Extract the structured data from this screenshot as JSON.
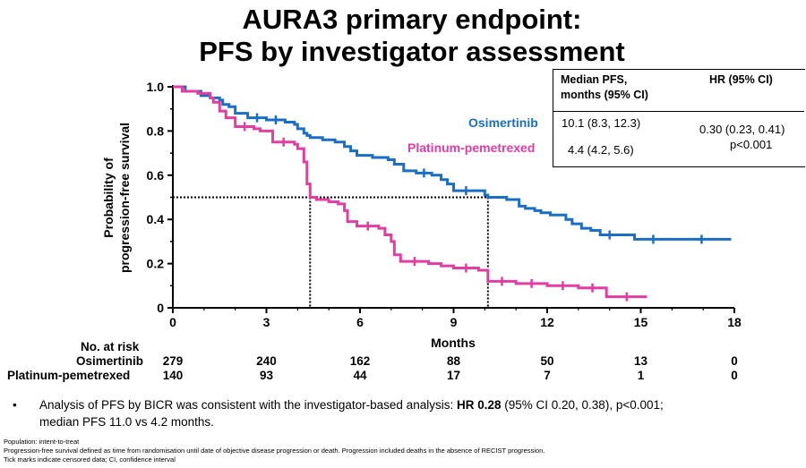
{
  "title_line1": "AURA3 primary endpoint:",
  "title_line2": "PFS by investigator assessment",
  "table": {
    "col1_header_line1": "Median PFS,",
    "col1_header_line2": "months (95% CI)",
    "col2_header": "HR (95% CI)",
    "osi_median": "10.1 (8.3, 12.3)",
    "pla_median": "4.4 (4.2, 5.6)",
    "hr": "0.30 (0.23, 0.41)",
    "p": "p<0.001"
  },
  "legend": {
    "osimertinib": "Osimertinib",
    "platinum": "Platinum-pemetrexed"
  },
  "risk_table": {
    "header": "No. at risk",
    "osi_label": "Osimertinib",
    "pla_label": "Platinum-pemetrexed",
    "osi_counts": [
      "279",
      "240",
      "162",
      "88",
      "50",
      "13",
      "0"
    ],
    "pla_counts": [
      "140",
      "93",
      "44",
      "17",
      "7",
      "1",
      "0"
    ]
  },
  "bullet": {
    "dot": "•",
    "pre": "Analysis of PFS by BICR was consistent with the investigator-based analysis: ",
    "bold": "HR 0.28",
    "post": " (95% CI 0.20, 0.38), p<0.001;",
    "line2": "median PFS 11.0 vs 4.2 months."
  },
  "footnotes": [
    "Population: intent-to-treat",
    "Progression-free survival defined as time from randomisation until date of objective disease progression or death. Progression included deaths in the absence of RECIST progression.",
    "Tick marks indicate censored data; CI, confidence interval"
  ],
  "chart_data": {
    "type": "line",
    "xlabel": "Months",
    "ylabel": "Probability of progression-free survival",
    "xlim": [
      0,
      18
    ],
    "ylim": [
      0,
      1.0
    ],
    "x_ticks": [
      "0",
      "3",
      "6",
      "9",
      "12",
      "15",
      "18"
    ],
    "y_ticks": [
      "0",
      "0.2",
      "0.4",
      "0.6",
      "0.8",
      "1.0"
    ],
    "median_line_y": 0.5,
    "median_x": [
      4.4,
      10.1
    ],
    "series": [
      {
        "name": "Osimertinib",
        "color": "#1a6fc4",
        "x": [
          0,
          0.4,
          0.9,
          1.2,
          1.5,
          1.6,
          1.8,
          2.0,
          2.4,
          3.0,
          3.6,
          3.9,
          4.0,
          4.2,
          4.3,
          4.4,
          4.5,
          4.8,
          5.2,
          5.5,
          5.7,
          5.9,
          6.1,
          6.4,
          6.9,
          7.1,
          7.4,
          7.8,
          8.3,
          8.6,
          8.8,
          9.0,
          9.8,
          10.0,
          10.1,
          10.3,
          10.7,
          11.1,
          11.3,
          11.6,
          11.8,
          12.1,
          12.3,
          12.6,
          12.8,
          13.1,
          13.4,
          13.7,
          14.3,
          14.8,
          16.0,
          17.9
        ],
        "y": [
          1.0,
          0.98,
          0.96,
          0.95,
          0.94,
          0.92,
          0.91,
          0.88,
          0.86,
          0.85,
          0.84,
          0.83,
          0.81,
          0.79,
          0.78,
          0.77,
          0.77,
          0.76,
          0.75,
          0.73,
          0.71,
          0.69,
          0.69,
          0.68,
          0.67,
          0.65,
          0.62,
          0.61,
          0.6,
          0.58,
          0.56,
          0.53,
          0.53,
          0.51,
          0.5,
          0.5,
          0.49,
          0.46,
          0.45,
          0.44,
          0.43,
          0.42,
          0.42,
          0.4,
          0.38,
          0.36,
          0.35,
          0.33,
          0.33,
          0.31,
          0.31,
          0.31
        ]
      },
      {
        "name": "Platinum-pemetrexed",
        "color": "#e23da0",
        "x": [
          0,
          0.3,
          0.8,
          1.2,
          1.3,
          1.5,
          1.7,
          2.0,
          2.6,
          2.8,
          3.2,
          3.9,
          4.0,
          4.2,
          4.3,
          4.4,
          4.6,
          5.0,
          5.3,
          5.5,
          5.6,
          5.9,
          6.6,
          6.8,
          7.0,
          7.1,
          7.3,
          8.2,
          8.6,
          9.0,
          9.8,
          10.1,
          11.0,
          12.0,
          13.0,
          13.9,
          15.2
        ],
        "y": [
          1.0,
          0.98,
          0.97,
          0.95,
          0.93,
          0.89,
          0.86,
          0.82,
          0.81,
          0.8,
          0.75,
          0.74,
          0.72,
          0.66,
          0.56,
          0.5,
          0.49,
          0.48,
          0.47,
          0.44,
          0.39,
          0.37,
          0.36,
          0.33,
          0.3,
          0.24,
          0.21,
          0.2,
          0.19,
          0.18,
          0.17,
          0.12,
          0.11,
          0.1,
          0.09,
          0.05,
          0.05
        ]
      }
    ]
  }
}
